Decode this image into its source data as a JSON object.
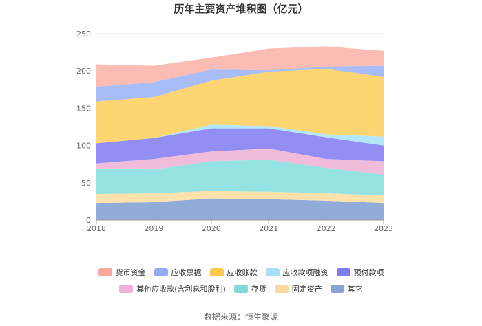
{
  "chart_data": {
    "type": "area",
    "stacked": true,
    "title": "历年主要资产堆积图（亿元）",
    "x": [
      "2018",
      "2019",
      "2020",
      "2021",
      "2022",
      "2023"
    ],
    "ylim": [
      0,
      250
    ],
    "yticks": [
      "0",
      "50",
      "100",
      "150",
      "200",
      "250"
    ],
    "grid": true,
    "legend_position": "bottom",
    "series": [
      {
        "name": "其它",
        "color": "#8ca8d8",
        "values": [
          23,
          24,
          29,
          28,
          26,
          23
        ]
      },
      {
        "name": "固定资产",
        "color": "#fde0a8",
        "values": [
          12,
          12,
          10,
          10,
          10,
          10
        ]
      },
      {
        "name": "存货",
        "color": "#8ee0e0",
        "values": [
          34,
          32,
          40,
          43,
          34,
          28
        ]
      },
      {
        "name": "其他应收款(含利息和股利)",
        "color": "#f0b8d8",
        "values": [
          7,
          14,
          13,
          15,
          12,
          18
        ]
      },
      {
        "name": "预付款项",
        "color": "#8c88f2",
        "values": [
          27,
          28,
          31,
          27,
          29,
          21
        ]
      },
      {
        "name": "应收款项融资",
        "color": "#b0e6fa",
        "values": [
          0,
          0,
          5,
          3,
          4,
          12
        ]
      },
      {
        "name": "应收账款",
        "color": "#fed36c",
        "values": [
          56,
          55,
          59,
          73,
          88,
          80
        ]
      },
      {
        "name": "应收票据",
        "color": "#a3b8f8",
        "values": [
          20,
          20,
          15,
          2,
          3,
          15
        ]
      },
      {
        "name": "货币资金",
        "color": "#fbb8b0",
        "values": [
          30,
          22,
          16,
          29,
          27,
          20
        ]
      }
    ]
  },
  "legend_rows": [
    [
      {
        "label": "货币资金",
        "color": "#f9a8a0"
      },
      {
        "label": "应收票据",
        "color": "#93aaf6"
      },
      {
        "label": "应收账款",
        "color": "#fdc84a"
      },
      {
        "label": "应收款项融资",
        "color": "#a6dff8"
      },
      {
        "label": "预付款项",
        "color": "#7f7bf0"
      }
    ],
    [
      {
        "label": "其他应收款(含利息和股利)",
        "color": "#eeb0d4"
      },
      {
        "label": "存货",
        "color": "#80dada"
      },
      {
        "label": "固定资产",
        "color": "#fdd9a0"
      },
      {
        "label": "其它",
        "color": "#88a4d6"
      }
    ]
  ],
  "source": "数据来源：恒生聚源"
}
